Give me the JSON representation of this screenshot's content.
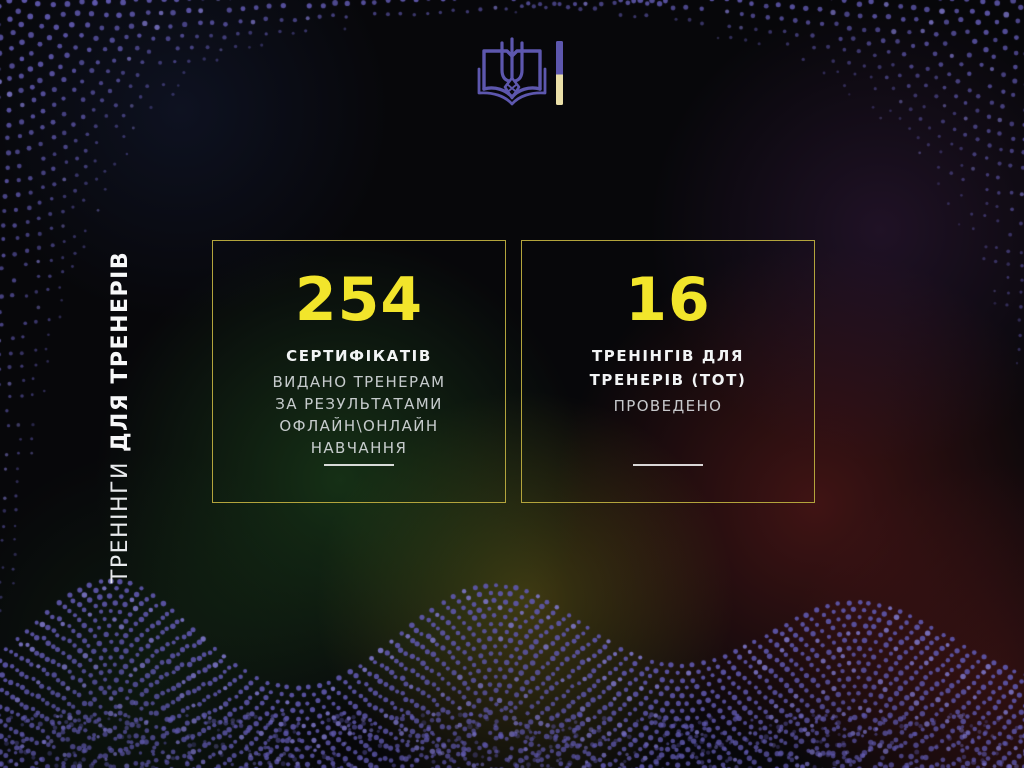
{
  "slide": {
    "vertical_title": {
      "regular": "ТРЕНІНГИ",
      "bold": "ДЛЯ ТРЕНЕРІВ"
    },
    "stats": [
      {
        "value": "254",
        "label_lines": [
          "СЕРТИФІКАТІВ"
        ],
        "desc_lines": [
          "ВИДАНО ТРЕНЕРАМ",
          "ЗА РЕЗУЛЬТАТАМИ",
          "ОФЛАЙН\\ОНЛАЙН",
          "НАВЧАННЯ"
        ]
      },
      {
        "value": "16",
        "label_lines": [
          "ТРЕНІНГІВ ДЛЯ",
          "ТРЕНЕРІВ (ТОТ)"
        ],
        "desc_lines": [
          "ПРОВЕДЕНО"
        ]
      }
    ],
    "logo": {
      "icon": "open-book-with-trident-icon"
    },
    "colors": {
      "accent_yellow": "#f2e52b",
      "border_yellow": "#b3a43c",
      "dot_purple": "#5e57ab",
      "dot_purple_light": "#7b74c6",
      "logo_purple": "#5d57ae",
      "logo_gold": "#eadfa8"
    }
  }
}
